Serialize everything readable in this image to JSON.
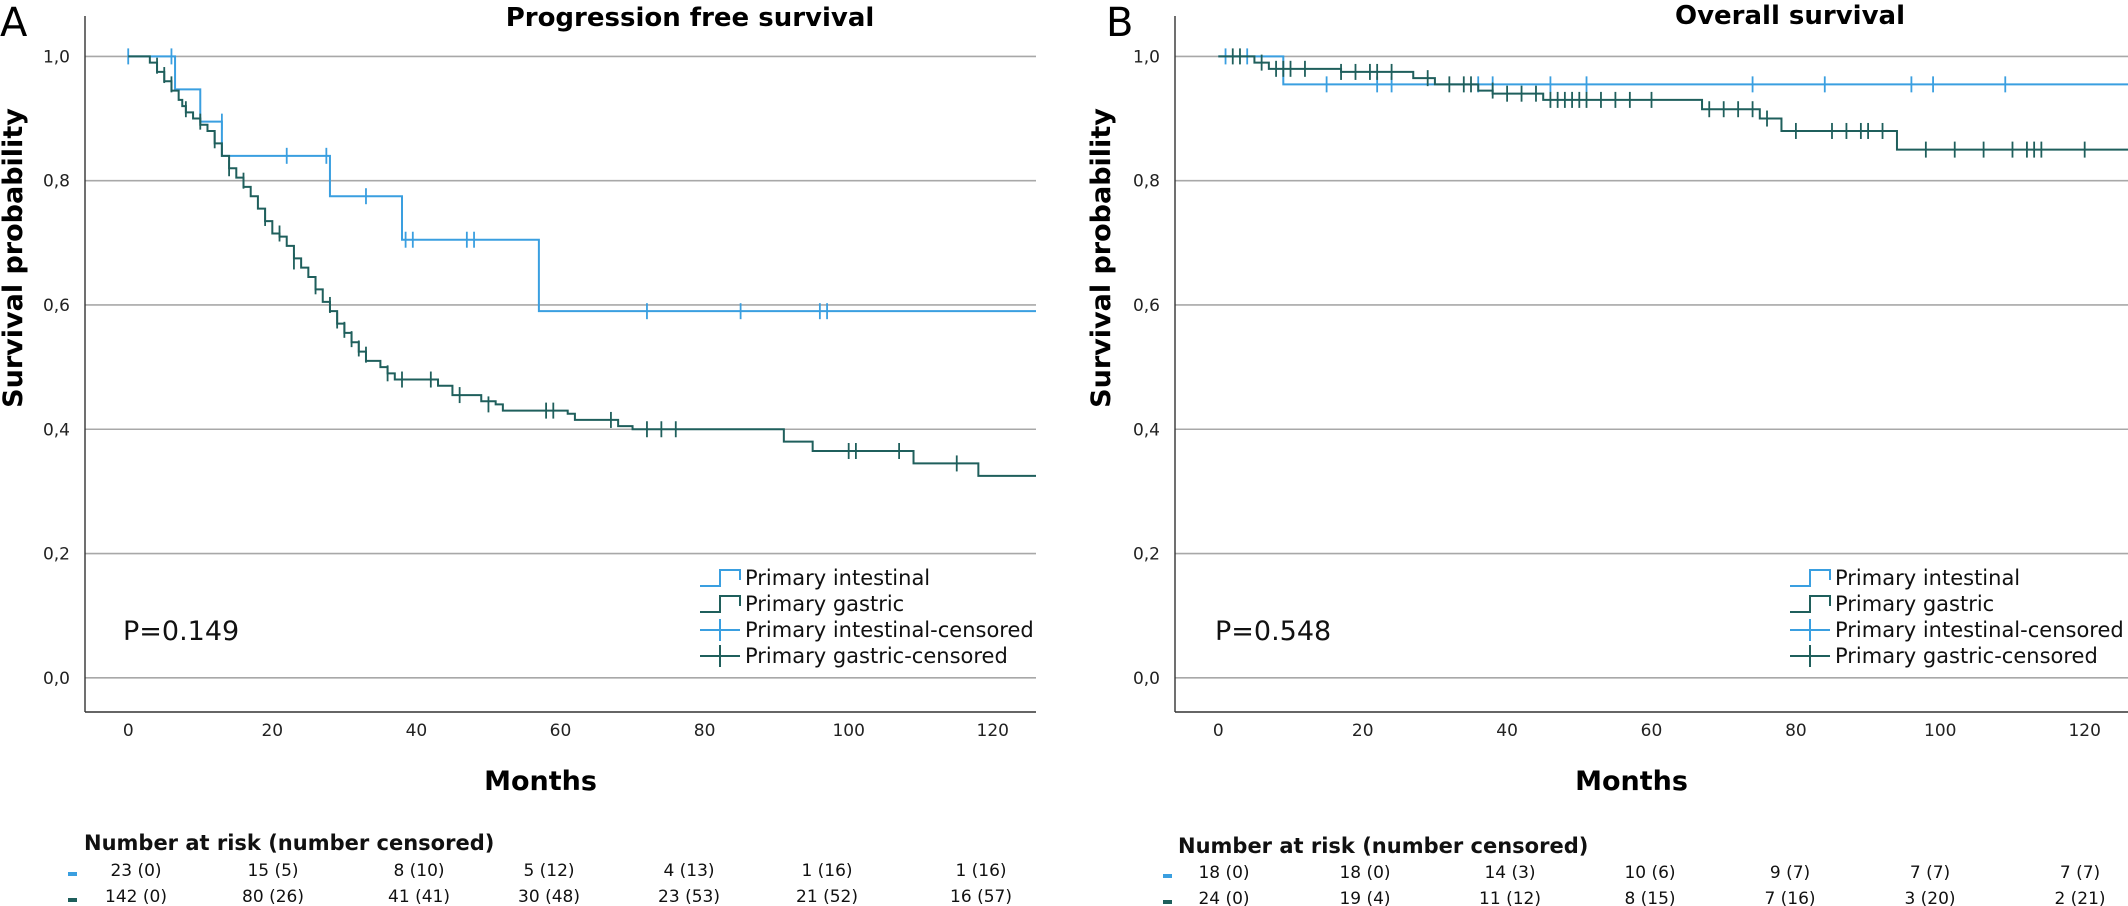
{
  "colors": {
    "intestinal": "#3a9fe0",
    "gastric": "#1f5f5c",
    "grid": "#a8a8a8",
    "axis": "#333333"
  },
  "chart_data": [
    {
      "panel_letter": "A",
      "type": "line",
      "title": "Progression free survival",
      "xlabel": "Months",
      "ylabel": "Survival probability",
      "xticks": [
        "0",
        "20",
        "40",
        "60",
        "80",
        "100",
        "120"
      ],
      "yticks": [
        "0,0",
        "0,2",
        "0,4",
        "0,6",
        "0,8",
        "1,0"
      ],
      "xlim": [
        -6,
        126
      ],
      "ylim": [
        -0.055,
        1.065
      ],
      "grid": true,
      "legend_position": "bottom-right",
      "p_value": "P=0.149",
      "legend": [
        "Primary intestinal",
        "Primary gastric",
        "Primary intestinal-censored",
        "Primary gastric-censored"
      ],
      "series": [
        {
          "name": "Primary intestinal",
          "color_key": "intestinal",
          "steps": [
            [
              0,
              1.0
            ],
            [
              6.5,
              0.947
            ],
            [
              10,
              0.895
            ],
            [
              13,
              0.84
            ],
            [
              28,
              0.775
            ],
            [
              38,
              0.705
            ],
            [
              57,
              0.59
            ],
            [
              126,
              0.59
            ]
          ],
          "censored": [
            [
              0,
              1.0
            ],
            [
              6,
              1.0
            ],
            [
              13,
              0.895
            ],
            [
              22,
              0.84
            ],
            [
              27.5,
              0.84
            ],
            [
              33,
              0.775
            ],
            [
              38.5,
              0.705
            ],
            [
              39.5,
              0.705
            ],
            [
              47,
              0.705
            ],
            [
              48,
              0.705
            ],
            [
              72,
              0.59
            ],
            [
              85,
              0.59
            ],
            [
              96,
              0.59
            ],
            [
              97,
              0.59
            ]
          ]
        },
        {
          "name": "Primary gastric",
          "color_key": "gastric",
          "steps": [
            [
              0,
              1.0
            ],
            [
              3,
              0.99
            ],
            [
              4,
              0.975
            ],
            [
              5,
              0.96
            ],
            [
              6,
              0.945
            ],
            [
              7,
              0.93
            ],
            [
              7.5,
              0.92
            ],
            [
              8,
              0.91
            ],
            [
              9,
              0.9
            ],
            [
              10,
              0.89
            ],
            [
              11,
              0.88
            ],
            [
              12,
              0.86
            ],
            [
              13,
              0.84
            ],
            [
              14,
              0.82
            ],
            [
              15,
              0.805
            ],
            [
              16,
              0.79
            ],
            [
              17,
              0.775
            ],
            [
              18,
              0.755
            ],
            [
              19,
              0.735
            ],
            [
              20,
              0.715
            ],
            [
              21,
              0.71
            ],
            [
              22,
              0.695
            ],
            [
              23,
              0.675
            ],
            [
              24,
              0.66
            ],
            [
              25,
              0.645
            ],
            [
              26,
              0.625
            ],
            [
              27,
              0.605
            ],
            [
              28,
              0.59
            ],
            [
              29,
              0.57
            ],
            [
              30,
              0.555
            ],
            [
              31,
              0.54
            ],
            [
              32,
              0.525
            ],
            [
              33,
              0.51
            ],
            [
              35,
              0.5
            ],
            [
              36,
              0.49
            ],
            [
              37,
              0.48
            ],
            [
              43,
              0.47
            ],
            [
              45,
              0.455
            ],
            [
              49,
              0.445
            ],
            [
              51,
              0.44
            ],
            [
              52,
              0.43
            ],
            [
              59,
              0.43
            ],
            [
              61,
              0.425
            ],
            [
              62,
              0.415
            ],
            [
              68,
              0.405
            ],
            [
              70,
              0.4
            ],
            [
              91,
              0.38
            ],
            [
              95,
              0.365
            ],
            [
              109,
              0.345
            ],
            [
              118,
              0.325
            ],
            [
              126,
              0.325
            ]
          ],
          "censored": [
            [
              4,
              0.985
            ],
            [
              5,
              0.97
            ],
            [
              6,
              0.955
            ],
            [
              8,
              0.915
            ],
            [
              10,
              0.895
            ],
            [
              12,
              0.865
            ],
            [
              14,
              0.82
            ],
            [
              16,
              0.8
            ],
            [
              19,
              0.74
            ],
            [
              21,
              0.715
            ],
            [
              23,
              0.67
            ],
            [
              26,
              0.63
            ],
            [
              28,
              0.6
            ],
            [
              29,
              0.575
            ],
            [
              30,
              0.56
            ],
            [
              31,
              0.545
            ],
            [
              32,
              0.53
            ],
            [
              33,
              0.52
            ],
            [
              36,
              0.49
            ],
            [
              38,
              0.48
            ],
            [
              42,
              0.48
            ],
            [
              46,
              0.455
            ],
            [
              50,
              0.44
            ],
            [
              58,
              0.43
            ],
            [
              59,
              0.43
            ],
            [
              67,
              0.415
            ],
            [
              72,
              0.4
            ],
            [
              74,
              0.4
            ],
            [
              76,
              0.4
            ],
            [
              100,
              0.365
            ],
            [
              101,
              0.365
            ],
            [
              107,
              0.365
            ],
            [
              115,
              0.345
            ]
          ]
        }
      ],
      "risk_table": {
        "title": "Number at risk (number censored)",
        "rows": [
          {
            "color_key": "intestinal",
            "cells": [
              "23 (0)",
              "15 (5)",
              "8 (10)",
              "5 (12)",
              "4 (13)",
              "1 (16)",
              "1 (16)"
            ]
          },
          {
            "color_key": "gastric",
            "cells": [
              "142 (0)",
              "80 (26)",
              "41 (41)",
              "30 (48)",
              "23 (53)",
              "21 (52)",
              "16 (57)"
            ]
          }
        ]
      }
    },
    {
      "panel_letter": "B",
      "type": "line",
      "title": "Overall survival",
      "xlabel": "Months",
      "ylabel": "Survival probability",
      "xticks": [
        "0",
        "20",
        "40",
        "60",
        "80",
        "100",
        "120"
      ],
      "yticks": [
        "0,0",
        "0,2",
        "0,4",
        "0,6",
        "0,8",
        "1,0"
      ],
      "xlim": [
        -6,
        126
      ],
      "ylim": [
        -0.055,
        1.065
      ],
      "grid": true,
      "legend_position": "bottom-right",
      "p_value": "P=0.548",
      "legend": [
        "Primary intestinal",
        "Primary gastric",
        "Primary intestinal-censored",
        "Primary gastric-censored"
      ],
      "series": [
        {
          "name": "Primary intestinal",
          "color_key": "intestinal",
          "steps": [
            [
              0,
              1.0
            ],
            [
              9,
              0.955
            ],
            [
              126,
              0.955
            ]
          ],
          "censored": [
            [
              1,
              1.0
            ],
            [
              4,
              1.0
            ],
            [
              15,
              0.955
            ],
            [
              22,
              0.955
            ],
            [
              24,
              0.955
            ],
            [
              36,
              0.955
            ],
            [
              38,
              0.955
            ],
            [
              46,
              0.955
            ],
            [
              51,
              0.955
            ],
            [
              74,
              0.955
            ],
            [
              84,
              0.955
            ],
            [
              96,
              0.955
            ],
            [
              99,
              0.955
            ],
            [
              109,
              0.955
            ]
          ]
        },
        {
          "name": "Primary gastric",
          "color_key": "gastric",
          "steps": [
            [
              0,
              1.0
            ],
            [
              5,
              0.99
            ],
            [
              7,
              0.98
            ],
            [
              17,
              0.975
            ],
            [
              27,
              0.965
            ],
            [
              30,
              0.955
            ],
            [
              36,
              0.945
            ],
            [
              38,
              0.94
            ],
            [
              45,
              0.93
            ],
            [
              67,
              0.915
            ],
            [
              75,
              0.9
            ],
            [
              78,
              0.88
            ],
            [
              94,
              0.85
            ],
            [
              126,
              0.85
            ]
          ],
          "censored": [
            [
              2,
              1.0
            ],
            [
              3,
              1.0
            ],
            [
              6,
              0.99
            ],
            [
              8,
              0.98
            ],
            [
              9,
              0.98
            ],
            [
              10,
              0.98
            ],
            [
              12,
              0.98
            ],
            [
              17,
              0.975
            ],
            [
              19,
              0.975
            ],
            [
              21,
              0.975
            ],
            [
              22,
              0.975
            ],
            [
              24,
              0.975
            ],
            [
              29,
              0.965
            ],
            [
              32,
              0.955
            ],
            [
              34,
              0.955
            ],
            [
              35,
              0.955
            ],
            [
              38,
              0.945
            ],
            [
              40,
              0.94
            ],
            [
              42,
              0.94
            ],
            [
              44,
              0.94
            ],
            [
              46,
              0.93
            ],
            [
              47,
              0.93
            ],
            [
              48,
              0.93
            ],
            [
              49,
              0.93
            ],
            [
              50,
              0.93
            ],
            [
              51,
              0.93
            ],
            [
              53,
              0.93
            ],
            [
              55,
              0.93
            ],
            [
              57,
              0.93
            ],
            [
              60,
              0.93
            ],
            [
              68,
              0.915
            ],
            [
              70,
              0.915
            ],
            [
              72,
              0.915
            ],
            [
              74,
              0.915
            ],
            [
              76,
              0.9
            ],
            [
              80,
              0.88
            ],
            [
              85,
              0.88
            ],
            [
              87,
              0.88
            ],
            [
              89,
              0.88
            ],
            [
              90,
              0.88
            ],
            [
              92,
              0.88
            ],
            [
              98,
              0.85
            ],
            [
              102,
              0.85
            ],
            [
              106,
              0.85
            ],
            [
              110,
              0.85
            ],
            [
              112,
              0.85
            ],
            [
              113,
              0.85
            ],
            [
              114,
              0.85
            ],
            [
              120,
              0.85
            ]
          ]
        }
      ],
      "risk_table": {
        "title": "Number at risk (number censored)",
        "rows": [
          {
            "color_key": "intestinal",
            "cells": [
              "18 (0)",
              "18 (0)",
              "14 (3)",
              "10 (6)",
              "9 (7)",
              "7 (7)",
              "7 (7)"
            ]
          },
          {
            "color_key": "gastric",
            "cells": [
              "24 (0)",
              "19 (4)",
              "11 (12)",
              "8 (15)",
              "7 (16)",
              "3 (20)",
              "2 (21)"
            ]
          }
        ]
      }
    }
  ]
}
